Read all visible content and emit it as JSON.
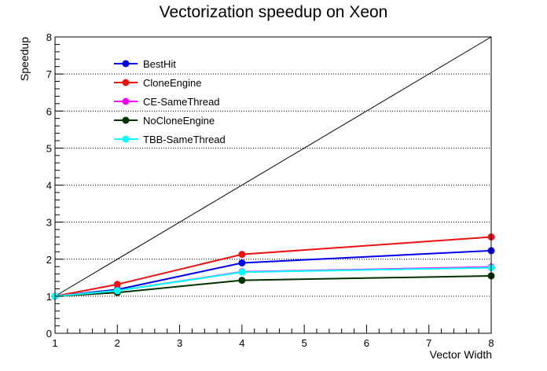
{
  "chart_data": {
    "type": "line",
    "title": "Vectorization speedup on Xeon",
    "xlabel": "Vector Width",
    "ylabel": "Speedup",
    "xlim": [
      1,
      8
    ],
    "ylim": [
      0,
      8
    ],
    "x_ticks": [
      1,
      2,
      3,
      4,
      5,
      6,
      7,
      8
    ],
    "y_ticks": [
      0,
      1,
      2,
      3,
      4,
      5,
      6,
      7,
      8
    ],
    "grid": "horizontal dotted",
    "legend_position": "top-left",
    "reference_line": {
      "x": [
        1,
        8
      ],
      "y": [
        1,
        8
      ],
      "color": "#000000"
    },
    "x": [
      1,
      2,
      4,
      8
    ],
    "series": [
      {
        "name": "BestHit",
        "color": "#0000ee",
        "values": [
          1.0,
          1.18,
          1.9,
          2.23
        ]
      },
      {
        "name": "CloneEngine",
        "color": "#ee1111",
        "values": [
          1.0,
          1.32,
          2.13,
          2.6
        ]
      },
      {
        "name": "CE-SameThread",
        "color": "#ff00ff",
        "values": [
          1.0,
          1.15,
          1.66,
          1.79
        ]
      },
      {
        "name": "NoCloneEngine",
        "color": "#003300",
        "values": [
          1.0,
          1.1,
          1.43,
          1.55
        ]
      },
      {
        "name": "TBB-SameThread",
        "color": "#00ffff",
        "values": [
          1.0,
          1.15,
          1.65,
          1.77
        ]
      }
    ]
  }
}
